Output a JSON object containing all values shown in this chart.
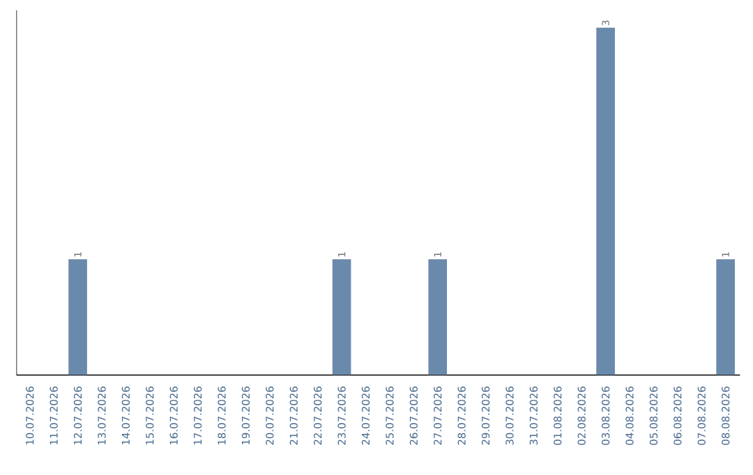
{
  "chart_data": {
    "type": "bar",
    "categories": [
      "10.07.2026",
      "11.07.2026",
      "12.07.2026",
      "13.07.2026",
      "14.07.2026",
      "15.07.2026",
      "16.07.2026",
      "17.07.2026",
      "18.07.2026",
      "19.07.2026",
      "20.07.2026",
      "21.07.2026",
      "22.07.2026",
      "23.07.2026",
      "24.07.2026",
      "25.07.2026",
      "26.07.2026",
      "27.07.2026",
      "28.07.2026",
      "29.07.2026",
      "30.07.2026",
      "31.07.2026",
      "01.08.2026",
      "02.08.2026",
      "03.08.2026",
      "04.08.2026",
      "05.08.2026",
      "06.08.2026",
      "07.08.2026",
      "08.08.2026"
    ],
    "values": [
      0,
      0,
      1,
      0,
      0,
      0,
      0,
      0,
      0,
      0,
      0,
      0,
      0,
      1,
      0,
      0,
      0,
      1,
      0,
      0,
      0,
      0,
      0,
      0,
      3,
      0,
      0,
      0,
      0,
      1
    ],
    "value_labels": [
      null,
      null,
      "1",
      null,
      null,
      null,
      null,
      null,
      null,
      null,
      null,
      null,
      null,
      "1",
      null,
      null,
      null,
      "1",
      null,
      null,
      null,
      null,
      null,
      null,
      "3",
      null,
      null,
      null,
      null,
      "1"
    ],
    "color": "#6a8aab"
  }
}
